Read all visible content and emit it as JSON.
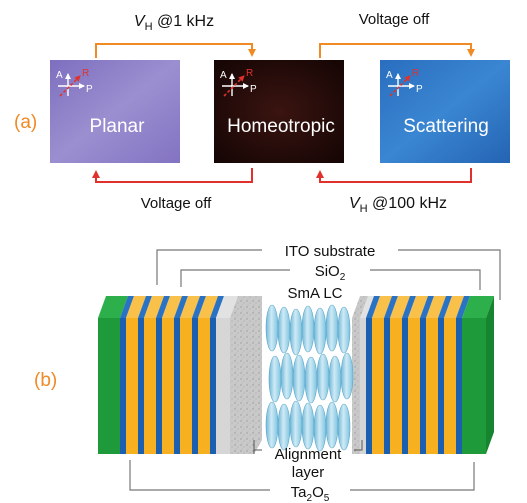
{
  "panel_a": {
    "label": "(a)",
    "arrow_top_left": {
      "var": "V",
      "sub": "H",
      "text": " @1 kHz"
    },
    "arrow_top_right": {
      "text": "Voltage off"
    },
    "arrow_bottom_left": {
      "text": "Voltage off"
    },
    "arrow_bottom_right": {
      "var": "V",
      "sub": "H",
      "text": " @100 kHz"
    },
    "states": [
      {
        "name": "Planar",
        "color": "#8c7fc6"
      },
      {
        "name": "Homeotropic",
        "color": "#1f0a08"
      },
      {
        "name": "Scattering",
        "color": "#2c74c4"
      }
    ],
    "axes_labels": {
      "analyzer": "A",
      "polarizer": "P",
      "rubbing": "R"
    }
  },
  "panel_b": {
    "label": "(b)",
    "ito_label": "ITO substrate",
    "sio2_label": {
      "text": "SiO",
      "sub": "2"
    },
    "lc_label": "SmA LC",
    "alignment_label": [
      "Alignment",
      "layer"
    ],
    "ta2o5_label": {
      "pre": "Ta",
      "sub1": "2",
      "mid": "O",
      "sub2": "5"
    }
  },
  "colors": {
    "orange_arrow": "#f08a24",
    "red_arrow": "#e0312d",
    "label_orange": "#f08a24",
    "green": "#1f9a3a",
    "blue": "#1a5fb0",
    "yellow": "#f7b120",
    "lc_molecule": "#9fd3ea"
  }
}
